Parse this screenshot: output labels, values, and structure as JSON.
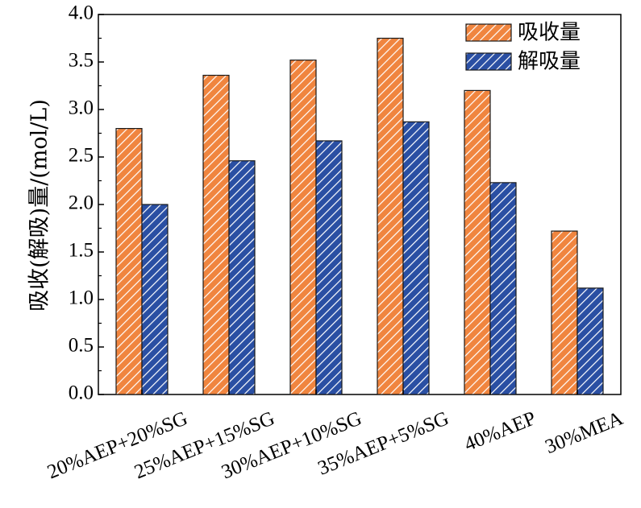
{
  "chart_data": {
    "type": "bar",
    "categories": [
      "20%AEP+20%SG",
      "25%AEP+15%SG",
      "30%AEP+10%SG",
      "35%AEP+5%SG",
      "40%AEP",
      "30%MEA"
    ],
    "series": [
      {
        "name": "吸收量",
        "values": [
          2.8,
          3.36,
          3.52,
          3.75,
          3.2,
          1.72
        ],
        "color": "#f0853f",
        "pattern": "diagonal-hatch-white"
      },
      {
        "name": "解吸量",
        "values": [
          2.0,
          2.46,
          2.67,
          2.87,
          2.23,
          1.12
        ],
        "color": "#2a4fa3",
        "pattern": "diagonal-hatch-white"
      }
    ],
    "title": "",
    "xlabel": "",
    "ylabel": "吸收(解吸)量/(mol/L)",
    "ylim": [
      0,
      4.0
    ],
    "yticks": [
      "0.0",
      "0.5",
      "1.0",
      "1.5",
      "2.0",
      "2.5",
      "3.0",
      "3.5",
      "4.0"
    ],
    "grid": false,
    "legend_position": "top-right"
  }
}
